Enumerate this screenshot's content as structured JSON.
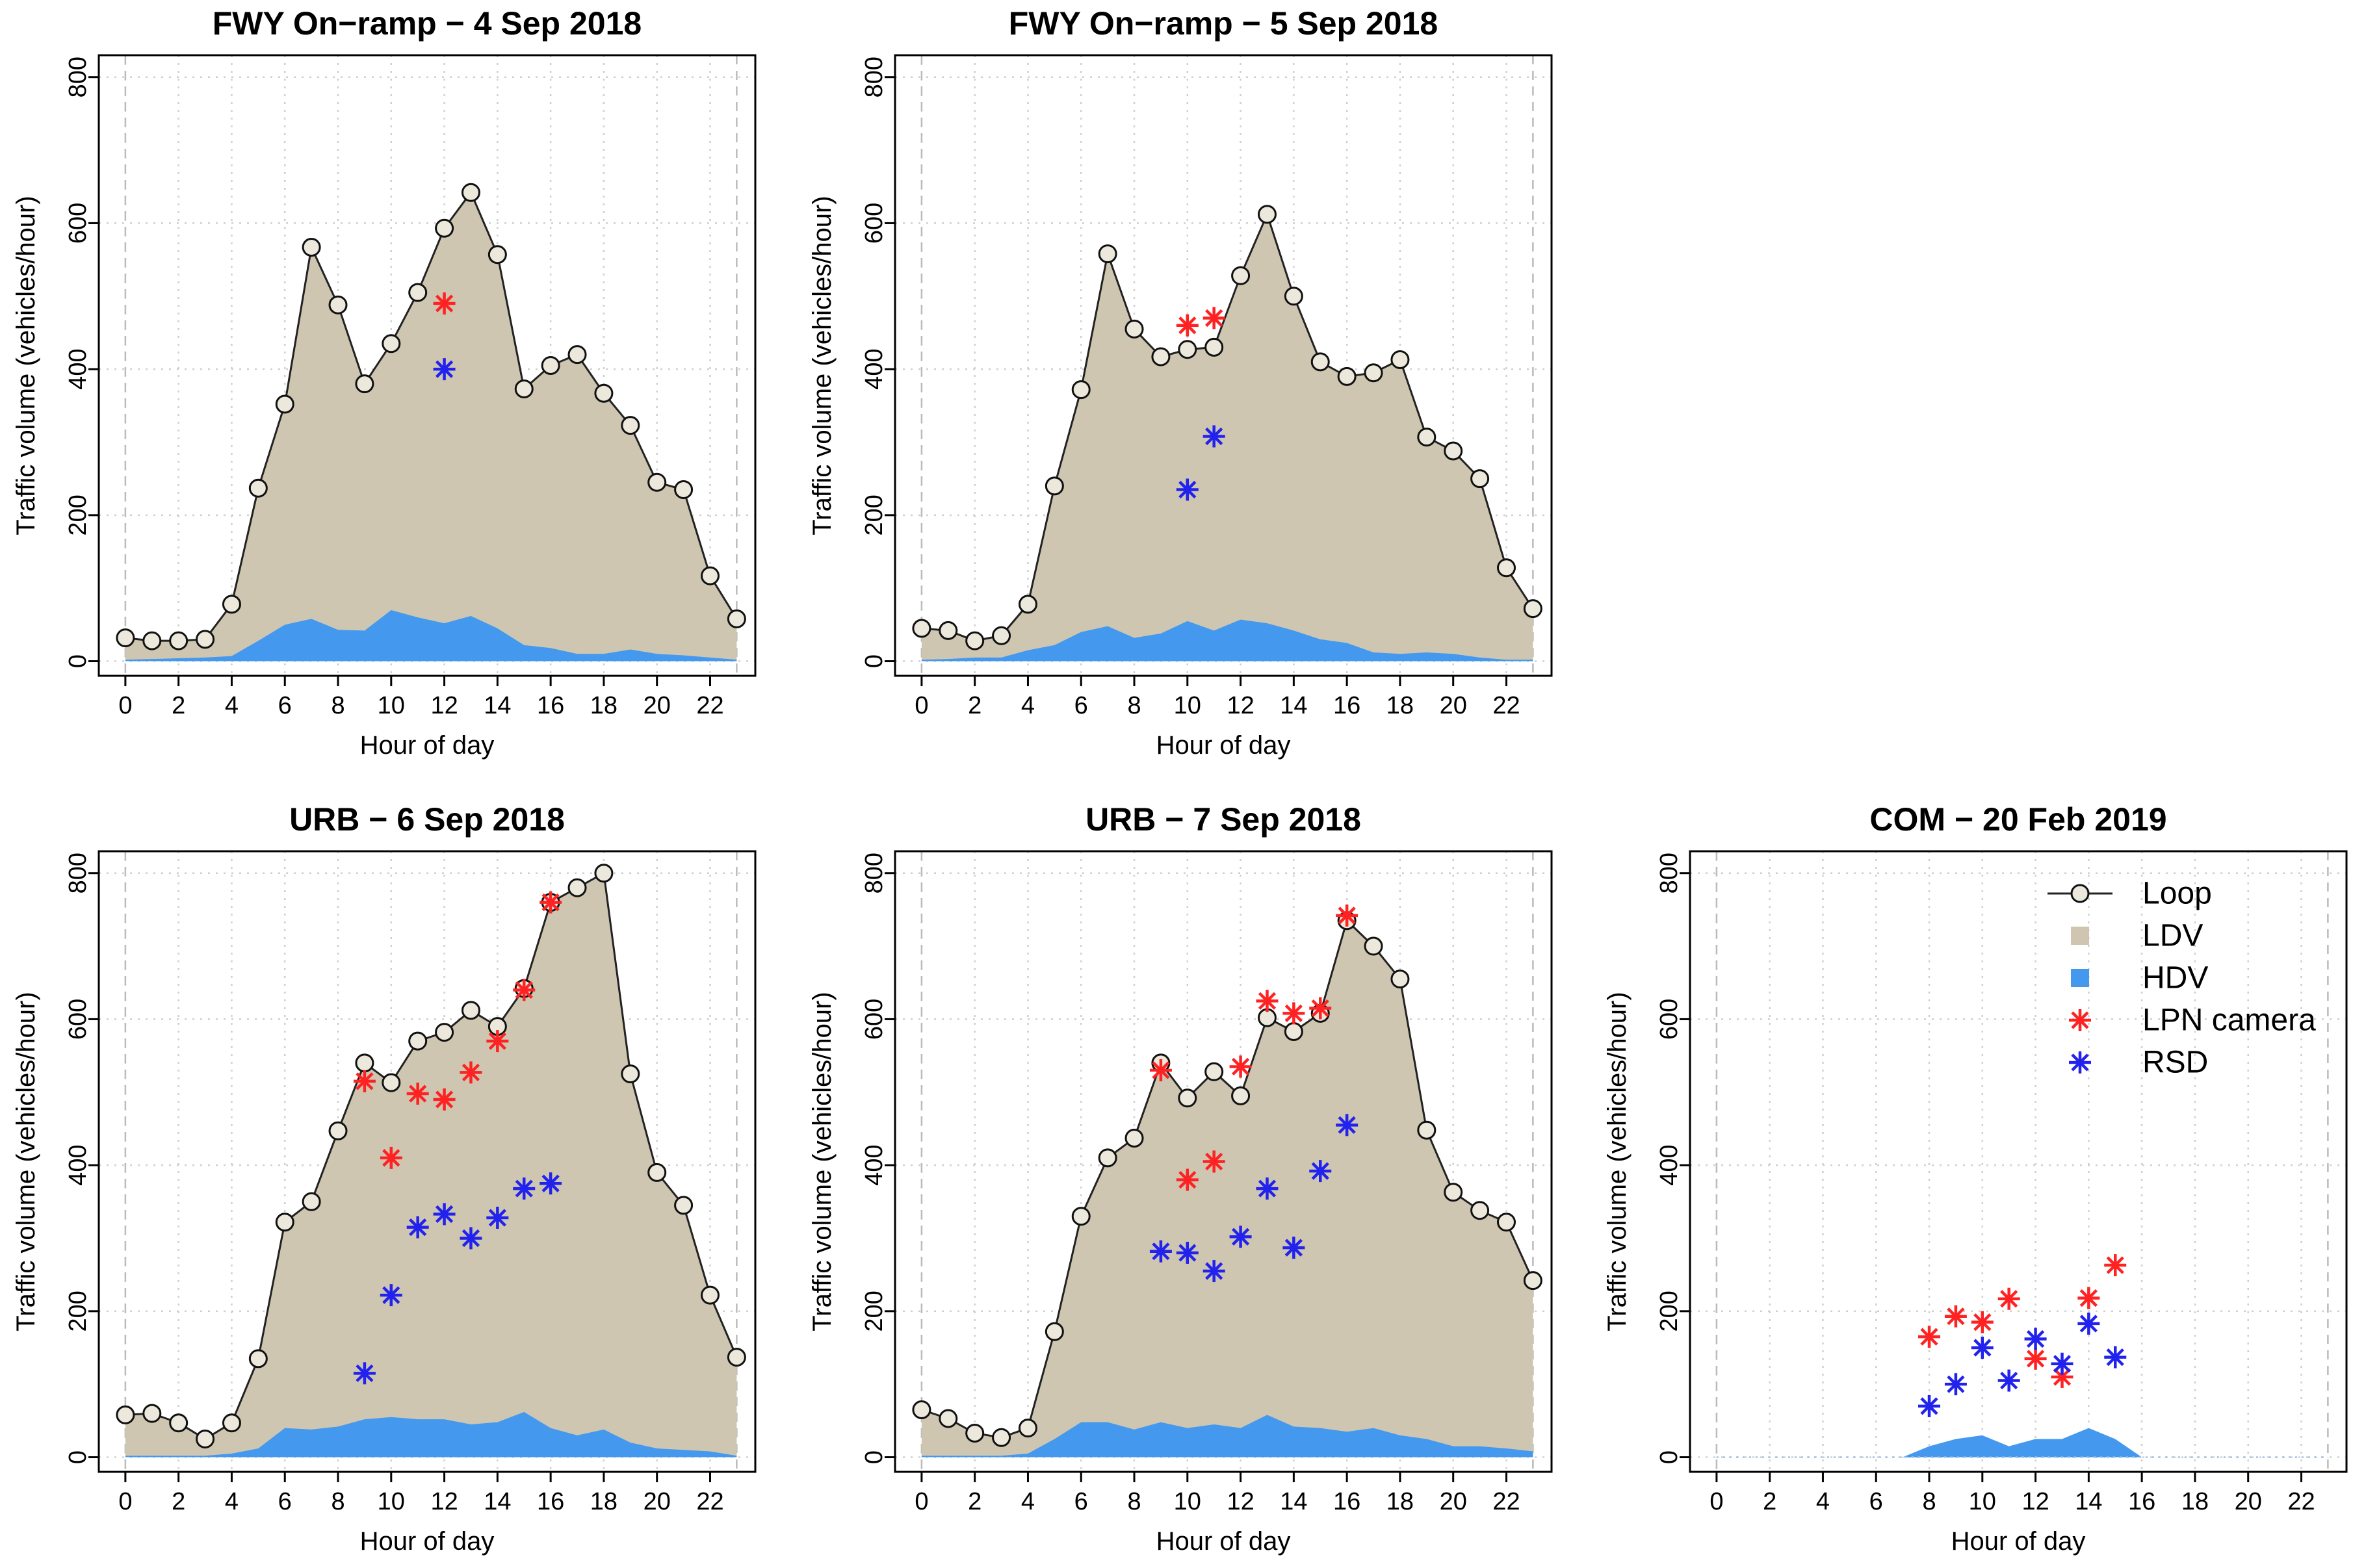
{
  "colors": {
    "ldv": "#cec6b1",
    "hdv": "#4499ee",
    "lpn": "#ff2222",
    "rsd": "#2222ee",
    "loop_fill": "#ece8dc",
    "grid": "#cfcfcf"
  },
  "legend": {
    "loop": "Loop",
    "ldv": "LDV",
    "hdv": "HDV",
    "lpn": "LPN camera",
    "rsd": "RSD"
  },
  "chart_data": [
    {
      "type": "line",
      "title": "FWY On−ramp − 4 Sep 2018",
      "xlabel": "Hour of day",
      "ylabel": "Traffic volume (vehicles/hour)",
      "xlim": [
        -1,
        23.7
      ],
      "ylim": [
        -20,
        830
      ],
      "xticks": [
        0,
        2,
        4,
        6,
        8,
        10,
        12,
        14,
        16,
        18,
        20,
        22
      ],
      "yticks": [
        0,
        200,
        400,
        600,
        800
      ],
      "loop": [
        32,
        28,
        28,
        30,
        78,
        237,
        352,
        567,
        488,
        380,
        435,
        505,
        593,
        642,
        557,
        373,
        405,
        420,
        367,
        323,
        245,
        235,
        117,
        58
      ],
      "hdv": [
        2,
        3,
        4,
        5,
        7,
        28,
        50,
        58,
        43,
        42,
        70,
        60,
        52,
        62,
        45,
        22,
        18,
        10,
        10,
        16,
        10,
        8,
        5,
        2
      ],
      "lpn": [
        {
          "x": 12,
          "y": 490
        }
      ],
      "rsd": [
        {
          "x": 12,
          "y": 400
        }
      ]
    },
    {
      "type": "line",
      "title": "FWY On−ramp − 5 Sep 2018",
      "xlabel": "Hour of day",
      "ylabel": "Traffic volume (vehicles/hour)",
      "xlim": [
        -1,
        23.7
      ],
      "ylim": [
        -20,
        830
      ],
      "xticks": [
        0,
        2,
        4,
        6,
        8,
        10,
        12,
        14,
        16,
        18,
        20,
        22
      ],
      "yticks": [
        0,
        200,
        400,
        600,
        800
      ],
      "loop": [
        45,
        42,
        28,
        35,
        78,
        240,
        372,
        558,
        455,
        417,
        427,
        430,
        528,
        612,
        500,
        410,
        390,
        395,
        413,
        307,
        288,
        250,
        128,
        72
      ],
      "hdv": [
        2,
        3,
        5,
        5,
        15,
        22,
        40,
        48,
        32,
        38,
        55,
        42,
        57,
        52,
        42,
        30,
        25,
        12,
        10,
        12,
        10,
        5,
        2,
        2
      ],
      "lpn": [
        {
          "x": 10,
          "y": 460
        },
        {
          "x": 11,
          "y": 470
        }
      ],
      "rsd": [
        {
          "x": 10,
          "y": 235
        },
        {
          "x": 11,
          "y": 308
        }
      ]
    },
    {
      "type": "line",
      "title": "URB − 6 Sep 2018",
      "xlabel": "Hour of day",
      "ylabel": "Traffic volume (vehicles/hour)",
      "xlim": [
        -1,
        23.7
      ],
      "ylim": [
        -20,
        830
      ],
      "xticks": [
        0,
        2,
        4,
        6,
        8,
        10,
        12,
        14,
        16,
        18,
        20,
        22
      ],
      "yticks": [
        0,
        200,
        400,
        600,
        800
      ],
      "loop": [
        58,
        60,
        47,
        25,
        47,
        135,
        322,
        350,
        447,
        540,
        513,
        570,
        582,
        612,
        590,
        642,
        760,
        780,
        800,
        525,
        390,
        345,
        222,
        137
      ],
      "hdv": [
        2,
        2,
        2,
        2,
        5,
        12,
        40,
        38,
        42,
        52,
        55,
        52,
        52,
        45,
        48,
        62,
        40,
        30,
        38,
        20,
        12,
        10,
        8,
        2
      ],
      "lpn": [
        {
          "x": 9,
          "y": 515
        },
        {
          "x": 10,
          "y": 410
        },
        {
          "x": 11,
          "y": 498
        },
        {
          "x": 12,
          "y": 490
        },
        {
          "x": 13,
          "y": 527
        },
        {
          "x": 14,
          "y": 570
        },
        {
          "x": 15,
          "y": 640
        },
        {
          "x": 16,
          "y": 760
        }
      ],
      "rsd": [
        {
          "x": 9,
          "y": 115
        },
        {
          "x": 10,
          "y": 222
        },
        {
          "x": 11,
          "y": 315
        },
        {
          "x": 12,
          "y": 333
        },
        {
          "x": 13,
          "y": 300
        },
        {
          "x": 14,
          "y": 328
        },
        {
          "x": 15,
          "y": 368
        },
        {
          "x": 16,
          "y": 375
        }
      ]
    },
    {
      "type": "line",
      "title": "URB − 7 Sep 2018",
      "xlabel": "Hour of day",
      "ylabel": "Traffic volume (vehicles/hour)",
      "xlim": [
        -1,
        23.7
      ],
      "ylim": [
        -20,
        830
      ],
      "xticks": [
        0,
        2,
        4,
        6,
        8,
        10,
        12,
        14,
        16,
        18,
        20,
        22
      ],
      "yticks": [
        0,
        200,
        400,
        600,
        800
      ],
      "loop": [
        65,
        53,
        33,
        27,
        40,
        172,
        330,
        410,
        437,
        540,
        492,
        528,
        495,
        602,
        583,
        608,
        735,
        700,
        655,
        448,
        363,
        338,
        322,
        242
      ],
      "hdv": [
        2,
        2,
        2,
        2,
        5,
        25,
        48,
        48,
        38,
        48,
        40,
        45,
        40,
        58,
        42,
        40,
        35,
        40,
        30,
        25,
        15,
        15,
        12,
        8
      ],
      "lpn": [
        {
          "x": 9,
          "y": 530
        },
        {
          "x": 10,
          "y": 380
        },
        {
          "x": 11,
          "y": 405
        },
        {
          "x": 12,
          "y": 535
        },
        {
          "x": 13,
          "y": 625
        },
        {
          "x": 14,
          "y": 608
        },
        {
          "x": 15,
          "y": 615
        },
        {
          "x": 16,
          "y": 742
        }
      ],
      "rsd": [
        {
          "x": 9,
          "y": 282
        },
        {
          "x": 10,
          "y": 280
        },
        {
          "x": 11,
          "y": 255
        },
        {
          "x": 12,
          "y": 302
        },
        {
          "x": 13,
          "y": 368
        },
        {
          "x": 14,
          "y": 287
        },
        {
          "x": 15,
          "y": 392
        },
        {
          "x": 16,
          "y": 455
        }
      ]
    },
    {
      "type": "line",
      "title": "COM − 20 Feb 2019",
      "xlabel": "Hour of day",
      "ylabel": "Traffic volume (vehicles/hour)",
      "xlim": [
        -1,
        23.7
      ],
      "ylim": [
        -20,
        830
      ],
      "xticks": [
        0,
        2,
        4,
        6,
        8,
        10,
        12,
        14,
        16,
        18,
        20,
        22
      ],
      "yticks": [
        0,
        200,
        400,
        600,
        800
      ],
      "loop": [],
      "hdv": [
        0,
        0,
        0,
        0,
        0,
        0,
        0,
        0,
        15,
        25,
        30,
        15,
        25,
        25,
        40,
        25,
        0,
        0,
        0,
        0,
        0,
        0,
        0,
        0
      ],
      "lpn": [
        {
          "x": 8,
          "y": 165
        },
        {
          "x": 9,
          "y": 193
        },
        {
          "x": 10,
          "y": 185
        },
        {
          "x": 11,
          "y": 217
        },
        {
          "x": 12,
          "y": 135
        },
        {
          "x": 13,
          "y": 110
        },
        {
          "x": 14,
          "y": 218
        },
        {
          "x": 15,
          "y": 263
        }
      ],
      "rsd": [
        {
          "x": 8,
          "y": 70
        },
        {
          "x": 9,
          "y": 100
        },
        {
          "x": 10,
          "y": 150
        },
        {
          "x": 11,
          "y": 105
        },
        {
          "x": 12,
          "y": 162
        },
        {
          "x": 13,
          "y": 128
        },
        {
          "x": 14,
          "y": 183
        },
        {
          "x": 15,
          "y": 137
        }
      ],
      "legend_position": "top-right"
    }
  ]
}
